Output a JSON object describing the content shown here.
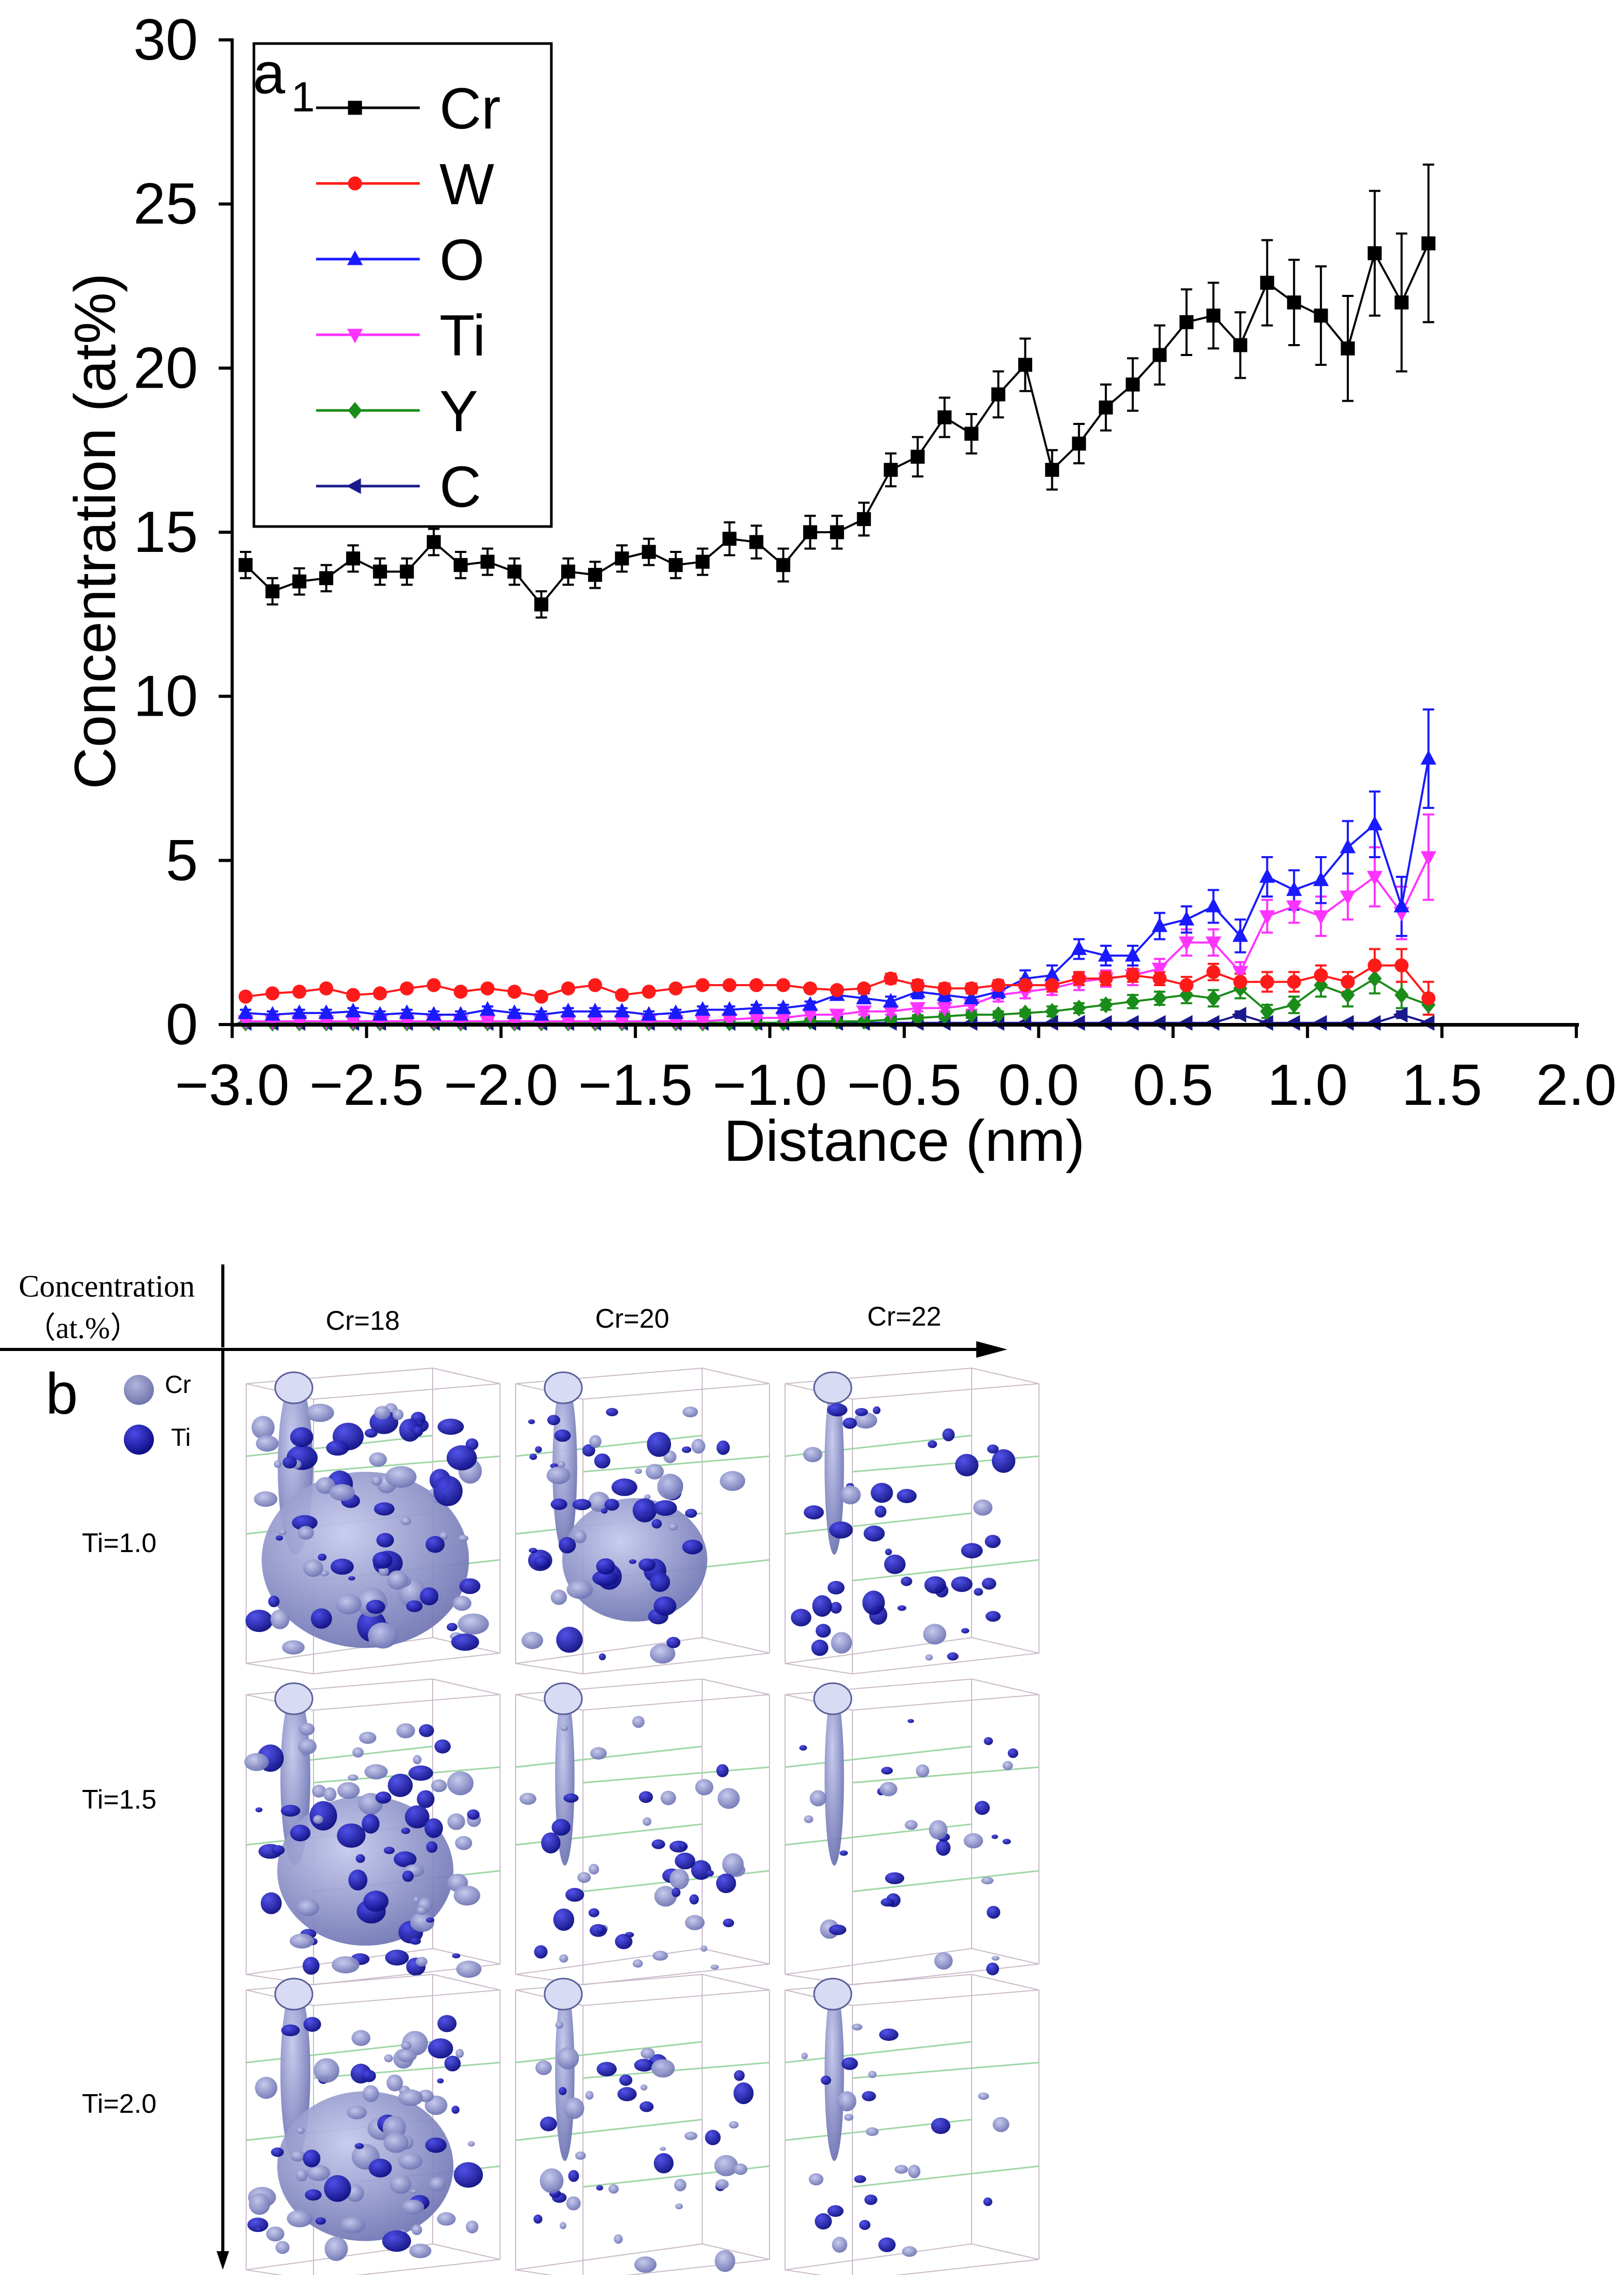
{
  "chart_data": [
    {
      "type": "line",
      "panel_label": "a",
      "panel_label_sub": "1",
      "title": "",
      "xlabel": "Distance (nm)",
      "ylabel": "Concentration (at%)",
      "xlim": [
        -3.0,
        2.0
      ],
      "ylim": [
        0,
        30
      ],
      "xticks": [
        "-3.0",
        "-2.5",
        "-2.0",
        "-1.5",
        "-1.0",
        "-0.5",
        "0.0",
        "0.5",
        "1.0",
        "1.5",
        "2.0"
      ],
      "yticks": [
        "0",
        "5",
        "10",
        "15",
        "20",
        "25",
        "30"
      ],
      "legend_position": "top-left",
      "x": [
        -2.95,
        -2.85,
        -2.75,
        -2.65,
        -2.55,
        -2.45,
        -2.35,
        -2.25,
        -2.15,
        -2.05,
        -1.95,
        -1.85,
        -1.75,
        -1.65,
        -1.55,
        -1.45,
        -1.35,
        -1.25,
        -1.15,
        -1.05,
        -0.95,
        -0.85,
        -0.75,
        -0.65,
        -0.55,
        -0.45,
        -0.35,
        -0.25,
        -0.15,
        -0.05,
        0.05,
        0.15,
        0.25,
        0.35,
        0.45,
        0.55,
        0.65,
        0.75,
        0.85,
        0.95,
        1.05,
        1.15,
        1.25,
        1.35,
        1.45
      ],
      "series": [
        {
          "name": "Cr",
          "color": "#000000",
          "marker": "square",
          "values": [
            14.0,
            13.2,
            13.5,
            13.6,
            14.2,
            13.8,
            13.8,
            14.7,
            14.0,
            14.1,
            13.8,
            12.8,
            13.8,
            13.7,
            14.2,
            14.4,
            14.0,
            14.1,
            14.8,
            14.7,
            14.0,
            15.0,
            15.0,
            15.4,
            16.9,
            17.3,
            18.5,
            18.0,
            19.2,
            20.1,
            16.9,
            17.7,
            18.8,
            19.5,
            20.4,
            21.4,
            21.6,
            20.7,
            22.6,
            22.0,
            21.6,
            20.6,
            23.5,
            22.0,
            23.8
          ],
          "errors": [
            0.4,
            0.4,
            0.4,
            0.4,
            0.4,
            0.4,
            0.4,
            0.4,
            0.4,
            0.4,
            0.4,
            0.4,
            0.4,
            0.4,
            0.4,
            0.4,
            0.4,
            0.4,
            0.5,
            0.5,
            0.5,
            0.5,
            0.5,
            0.5,
            0.5,
            0.6,
            0.6,
            0.6,
            0.7,
            0.8,
            0.6,
            0.6,
            0.7,
            0.8,
            0.9,
            1.0,
            1.0,
            1.0,
            1.3,
            1.3,
            1.5,
            1.6,
            1.9,
            2.1,
            2.4
          ]
        },
        {
          "name": "W",
          "color": "#ff1a1a",
          "marker": "circle",
          "values": [
            0.85,
            0.95,
            1.0,
            1.1,
            0.9,
            0.95,
            1.1,
            1.2,
            1.0,
            1.1,
            1.0,
            0.85,
            1.1,
            1.2,
            0.9,
            1.0,
            1.1,
            1.2,
            1.2,
            1.2,
            1.2,
            1.1,
            1.05,
            1.1,
            1.4,
            1.2,
            1.1,
            1.1,
            1.2,
            1.2,
            1.2,
            1.4,
            1.4,
            1.5,
            1.4,
            1.2,
            1.6,
            1.3,
            1.3,
            1.3,
            1.5,
            1.3,
            1.8,
            1.8,
            0.8
          ],
          "errors": [
            0.1,
            0.1,
            0.1,
            0.1,
            0.1,
            0.1,
            0.1,
            0.1,
            0.1,
            0.1,
            0.1,
            0.1,
            0.1,
            0.1,
            0.1,
            0.1,
            0.1,
            0.1,
            0.1,
            0.1,
            0.1,
            0.1,
            0.1,
            0.1,
            0.15,
            0.15,
            0.15,
            0.15,
            0.15,
            0.2,
            0.2,
            0.2,
            0.2,
            0.2,
            0.2,
            0.25,
            0.25,
            0.25,
            0.3,
            0.3,
            0.3,
            0.3,
            0.5,
            0.5,
            0.5
          ]
        },
        {
          "name": "O",
          "color": "#1a1aff",
          "marker": "triangle-up",
          "values": [
            0.35,
            0.3,
            0.35,
            0.35,
            0.4,
            0.3,
            0.35,
            0.3,
            0.3,
            0.45,
            0.35,
            0.3,
            0.4,
            0.4,
            0.4,
            0.3,
            0.35,
            0.45,
            0.45,
            0.5,
            0.5,
            0.6,
            0.9,
            0.8,
            0.7,
            1.0,
            0.9,
            0.8,
            1.0,
            1.4,
            1.5,
            2.3,
            2.1,
            2.1,
            3.0,
            3.2,
            3.6,
            2.7,
            4.5,
            4.1,
            4.4,
            5.4,
            6.1,
            3.6,
            8.1
          ],
          "errors": [
            0.1,
            0.1,
            0.1,
            0.1,
            0.1,
            0.1,
            0.1,
            0.1,
            0.1,
            0.1,
            0.1,
            0.1,
            0.1,
            0.1,
            0.1,
            0.1,
            0.1,
            0.1,
            0.1,
            0.1,
            0.1,
            0.1,
            0.15,
            0.15,
            0.15,
            0.2,
            0.2,
            0.2,
            0.2,
            0.25,
            0.3,
            0.3,
            0.3,
            0.3,
            0.4,
            0.4,
            0.5,
            0.5,
            0.6,
            0.6,
            0.7,
            0.8,
            1.0,
            0.9,
            1.5
          ]
        },
        {
          "name": "Ti",
          "color": "#ff33ff",
          "marker": "triangle-down",
          "values": [
            0.1,
            0.1,
            0.1,
            0.1,
            0.1,
            0.1,
            0.1,
            0.1,
            0.1,
            0.1,
            0.1,
            0.1,
            0.1,
            0.1,
            0.1,
            0.1,
            0.1,
            0.1,
            0.15,
            0.2,
            0.2,
            0.3,
            0.3,
            0.4,
            0.4,
            0.5,
            0.5,
            0.6,
            0.9,
            1.0,
            1.1,
            1.3,
            1.4,
            1.5,
            1.7,
            2.5,
            2.5,
            1.6,
            3.3,
            3.6,
            3.3,
            3.9,
            4.5,
            3.4,
            5.1
          ],
          "errors": [
            0.05,
            0.05,
            0.05,
            0.05,
            0.05,
            0.05,
            0.05,
            0.05,
            0.05,
            0.05,
            0.05,
            0.05,
            0.05,
            0.05,
            0.05,
            0.05,
            0.05,
            0.05,
            0.05,
            0.05,
            0.1,
            0.1,
            0.1,
            0.1,
            0.1,
            0.1,
            0.1,
            0.15,
            0.2,
            0.2,
            0.2,
            0.25,
            0.25,
            0.3,
            0.3,
            0.4,
            0.4,
            0.3,
            0.5,
            0.5,
            0.6,
            0.7,
            0.9,
            0.8,
            1.3
          ]
        },
        {
          "name": "Y",
          "color": "#1a8c1a",
          "marker": "diamond",
          "values": [
            0.05,
            0.05,
            0.05,
            0.05,
            0.05,
            0.05,
            0.05,
            0.05,
            0.05,
            0.05,
            0.05,
            0.05,
            0.05,
            0.05,
            0.05,
            0.05,
            0.05,
            0.05,
            0.05,
            0.05,
            0.05,
            0.1,
            0.1,
            0.1,
            0.15,
            0.2,
            0.25,
            0.3,
            0.3,
            0.35,
            0.4,
            0.5,
            0.6,
            0.7,
            0.8,
            0.9,
            0.8,
            1.1,
            0.4,
            0.6,
            1.2,
            0.9,
            1.4,
            0.9,
            0.6
          ],
          "errors": [
            0.03,
            0.03,
            0.03,
            0.03,
            0.03,
            0.03,
            0.03,
            0.03,
            0.03,
            0.03,
            0.03,
            0.03,
            0.03,
            0.03,
            0.03,
            0.03,
            0.03,
            0.03,
            0.03,
            0.03,
            0.05,
            0.05,
            0.05,
            0.05,
            0.05,
            0.08,
            0.08,
            0.1,
            0.1,
            0.1,
            0.15,
            0.15,
            0.15,
            0.2,
            0.2,
            0.25,
            0.25,
            0.3,
            0.2,
            0.25,
            0.35,
            0.35,
            0.45,
            0.4,
            0.3
          ]
        },
        {
          "name": "C",
          "color": "#1a1a8c",
          "marker": "triangle-left",
          "values": [
            0.05,
            0.05,
            0.05,
            0.05,
            0.05,
            0.05,
            0.05,
            0.05,
            0.05,
            0.05,
            0.05,
            0.05,
            0.05,
            0.05,
            0.05,
            0.05,
            0.05,
            0.05,
            0.05,
            0.05,
            0.05,
            0.05,
            0.05,
            0.05,
            0.05,
            0.05,
            0.05,
            0.05,
            0.05,
            0.05,
            0.05,
            0.05,
            0.05,
            0.05,
            0.05,
            0.05,
            0.05,
            0.3,
            0.05,
            0.05,
            0.05,
            0.05,
            0.05,
            0.3,
            0.05
          ],
          "errors": [
            0.02,
            0.02,
            0.02,
            0.02,
            0.02,
            0.02,
            0.02,
            0.02,
            0.02,
            0.02,
            0.02,
            0.02,
            0.02,
            0.02,
            0.02,
            0.02,
            0.02,
            0.02,
            0.02,
            0.02,
            0.02,
            0.02,
            0.02,
            0.02,
            0.02,
            0.02,
            0.02,
            0.02,
            0.02,
            0.02,
            0.02,
            0.02,
            0.02,
            0.02,
            0.02,
            0.02,
            0.02,
            0.1,
            0.02,
            0.02,
            0.02,
            0.02,
            0.02,
            0.1,
            0.02
          ]
        }
      ]
    }
  ],
  "panel_b": {
    "label": "b",
    "header_line1": "Concentration",
    "header_line2": "（at.%）",
    "columns": [
      "Cr=18",
      "Cr=20",
      "Cr=22"
    ],
    "rows": [
      "Ti=1.0",
      "Ti=1.5",
      "Ti=2.0"
    ],
    "legend": [
      {
        "name": "Cr",
        "color": "#8a8fc4"
      },
      {
        "name": "Ti",
        "color": "#1c1cb4"
      }
    ]
  }
}
